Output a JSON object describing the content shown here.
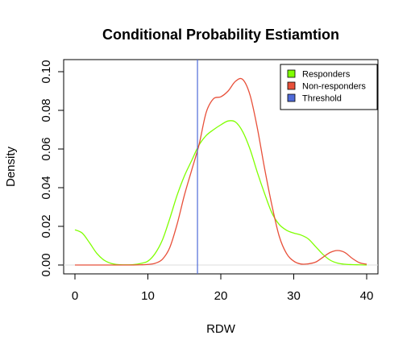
{
  "chart_data": {
    "type": "line",
    "title": "Conditional Probability Estiamtion",
    "xlabel": "RDW",
    "ylabel": "Density",
    "xlim": [
      0,
      40
    ],
    "ylim": [
      0,
      0.1
    ],
    "x_ticks": [
      "0",
      "10",
      "20",
      "30",
      "40"
    ],
    "y_ticks": [
      "0.00",
      "0.02",
      "0.04",
      "0.06",
      "0.08",
      "0.10"
    ],
    "legend_position": "top-right",
    "series": [
      {
        "name": "Responders",
        "color": "#7fff00",
        "x": [
          0,
          1,
          2,
          3,
          4,
          5,
          6,
          7,
          8,
          9,
          10,
          11,
          12,
          13,
          14,
          15,
          16,
          17,
          18,
          19,
          20,
          21,
          22,
          23,
          24,
          25,
          26,
          27,
          28,
          29,
          30,
          31,
          32,
          33,
          34,
          35,
          36,
          37,
          38,
          39,
          40
        ],
        "y": [
          0.0182,
          0.0165,
          0.0115,
          0.006,
          0.0025,
          0.0008,
          0.0002,
          0.0001,
          0.0002,
          0.0008,
          0.002,
          0.006,
          0.013,
          0.024,
          0.036,
          0.046,
          0.054,
          0.062,
          0.067,
          0.07,
          0.0725,
          0.0745,
          0.074,
          0.069,
          0.06,
          0.048,
          0.037,
          0.027,
          0.021,
          0.018,
          0.0165,
          0.0155,
          0.0135,
          0.0095,
          0.0055,
          0.0025,
          0.001,
          0.0004,
          0.0002,
          0.0001,
          0.0
        ]
      },
      {
        "name": "Non-responders",
        "color": "#e8503a",
        "x": [
          0,
          1,
          2,
          3,
          4,
          5,
          6,
          7,
          8,
          9,
          10,
          11,
          12,
          13,
          14,
          15,
          16,
          17,
          18,
          19,
          20,
          21,
          22,
          23,
          24,
          25,
          26,
          27,
          28,
          29,
          30,
          31,
          32,
          33,
          34,
          35,
          36,
          37,
          38,
          39,
          40
        ],
        "y": [
          0.0,
          0.0,
          0.0,
          0.0,
          0.0,
          0.0,
          0.0,
          0.0,
          0.0,
          0.0001,
          0.0003,
          0.0009,
          0.003,
          0.009,
          0.021,
          0.036,
          0.049,
          0.062,
          0.079,
          0.086,
          0.087,
          0.09,
          0.095,
          0.096,
          0.088,
          0.071,
          0.05,
          0.031,
          0.015,
          0.006,
          0.002,
          0.0005,
          0.0006,
          0.0015,
          0.004,
          0.0065,
          0.0075,
          0.0065,
          0.0035,
          0.0012,
          0.0004
        ]
      }
    ],
    "threshold": {
      "name": "Threshold",
      "color": "#4f6ad8",
      "x": 16.8
    }
  }
}
